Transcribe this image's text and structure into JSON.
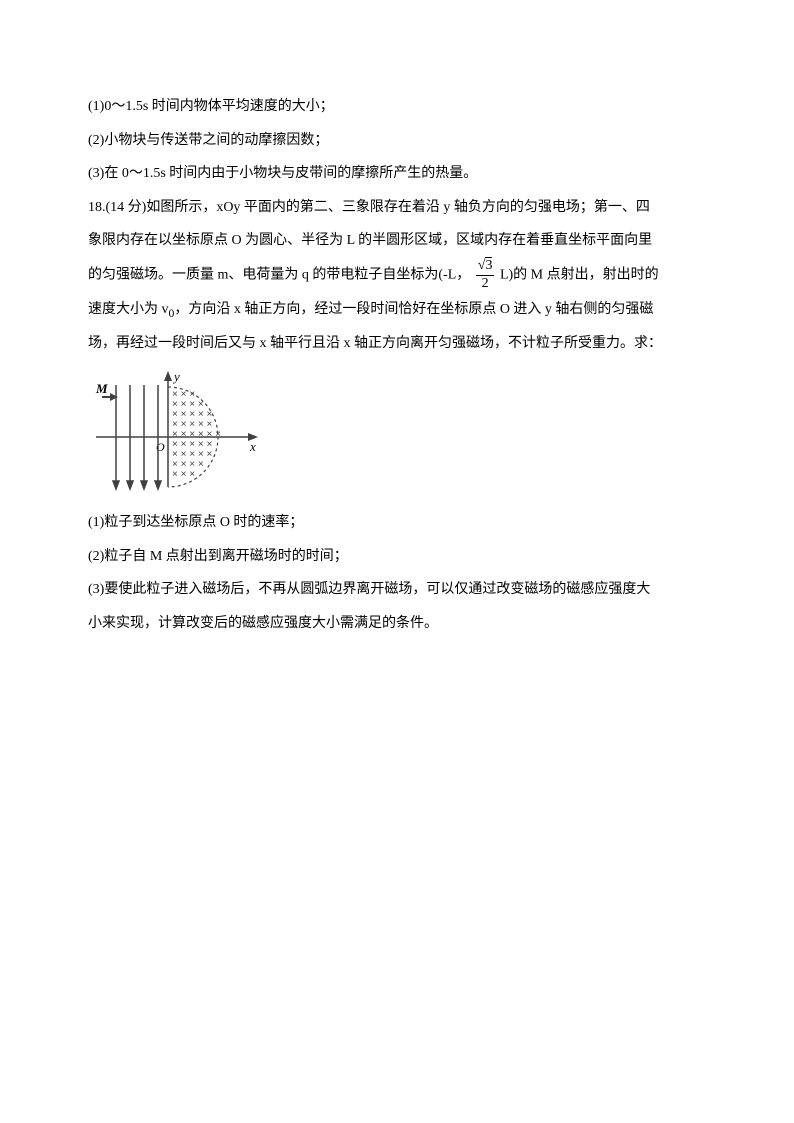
{
  "lines": {
    "q1": "(1)0～1.5s 时间内物体平均速度的大小；",
    "q2": "(2)小物块与传送带之间的动摩擦因数；",
    "q3": "(3)在 0～1.5s 时间内由于小物块与皮带间的摩擦所产生的热量。",
    "p18a": "18.(14 分)如图所示，xOy 平面内的第二、三象限存在着沿 y 轴负方向的匀强电场；第一、四",
    "p18b": "象限内存在以坐标原点 O 为圆心、半径为 L 的半圆形区域，区域内存在着垂直坐标平面向里",
    "p18c_pre": "的匀强磁场。一质量 m、电荷量为 q 的带电粒子自坐标为(-L，",
    "p18c_mid": "L)的 M 点射出，射出时的",
    "p18d": "速度大小为 v",
    "p18d2": "，方向沿 x 轴正方向，经过一段时间恰好在坐标原点 O 进入 y 轴右侧的匀强磁",
    "p18e": "场，再经过一段时间后又与 x 轴平行且沿 x 轴正方向离开匀强磁场，不计粒子所受重力。求：",
    "s1": "(1)粒子到达坐标原点 O 时的速率；",
    "s2": "(2)粒子自 M 点射出到离开磁场时的时间；",
    "s3": "(3)要使此粒子进入磁场后，不再从圆弧边界离开磁场，可以仅通过改变磁场的磁感应强度大",
    "s4": "小来实现，计算改变后的磁感应强度大小需满足的条件。",
    "sub0": "0",
    "frac_num": "3",
    "frac_den": "2"
  },
  "diagram": {
    "width": 178,
    "height": 128,
    "stroke_color": "#404040",
    "background": "#ffffff",
    "M_label": "M",
    "O_label": "O",
    "x_label": "x",
    "y_label": "y"
  }
}
